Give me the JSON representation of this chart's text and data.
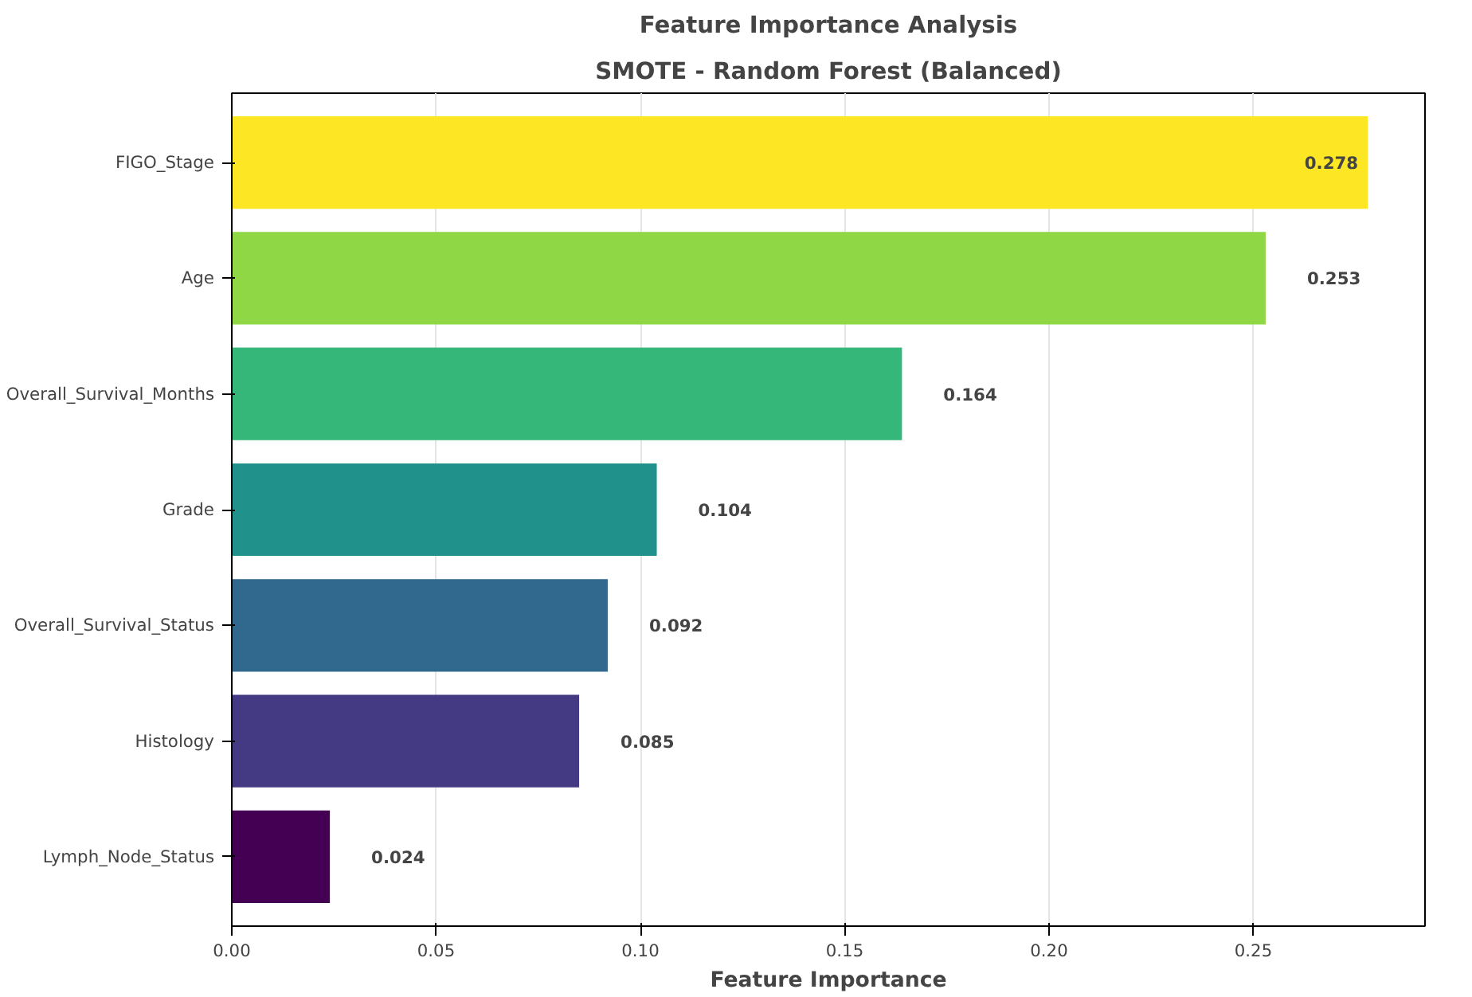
{
  "chart_data": {
    "type": "bar",
    "orientation": "horizontal",
    "title": "Feature Importance Analysis",
    "subtitle": "SMOTE - Random Forest (Balanced)",
    "xlabel": "Feature Importance",
    "categories": [
      "FIGO_Stage",
      "Age",
      "Overall_Survival_Months",
      "Grade",
      "Overall_Survival_Status",
      "Histology",
      "Lymph_Node_Status"
    ],
    "values": [
      0.278,
      0.253,
      0.164,
      0.104,
      0.092,
      0.085,
      0.024
    ],
    "colors": [
      "#fde725",
      "#8fd744",
      "#35b779",
      "#21918c",
      "#31688e",
      "#443983",
      "#440154"
    ],
    "xlim": [
      0,
      0.292
    ],
    "xticks": [
      {
        "value": 0,
        "label": "0.00"
      },
      {
        "value": 0.05,
        "label": "0.05"
      },
      {
        "value": 0.1,
        "label": "0.10"
      },
      {
        "value": 0.15,
        "label": "0.15"
      },
      {
        "value": 0.2,
        "label": "0.20"
      },
      {
        "value": 0.25,
        "label": "0.25"
      }
    ],
    "grid": "x",
    "data_labels": true
  }
}
